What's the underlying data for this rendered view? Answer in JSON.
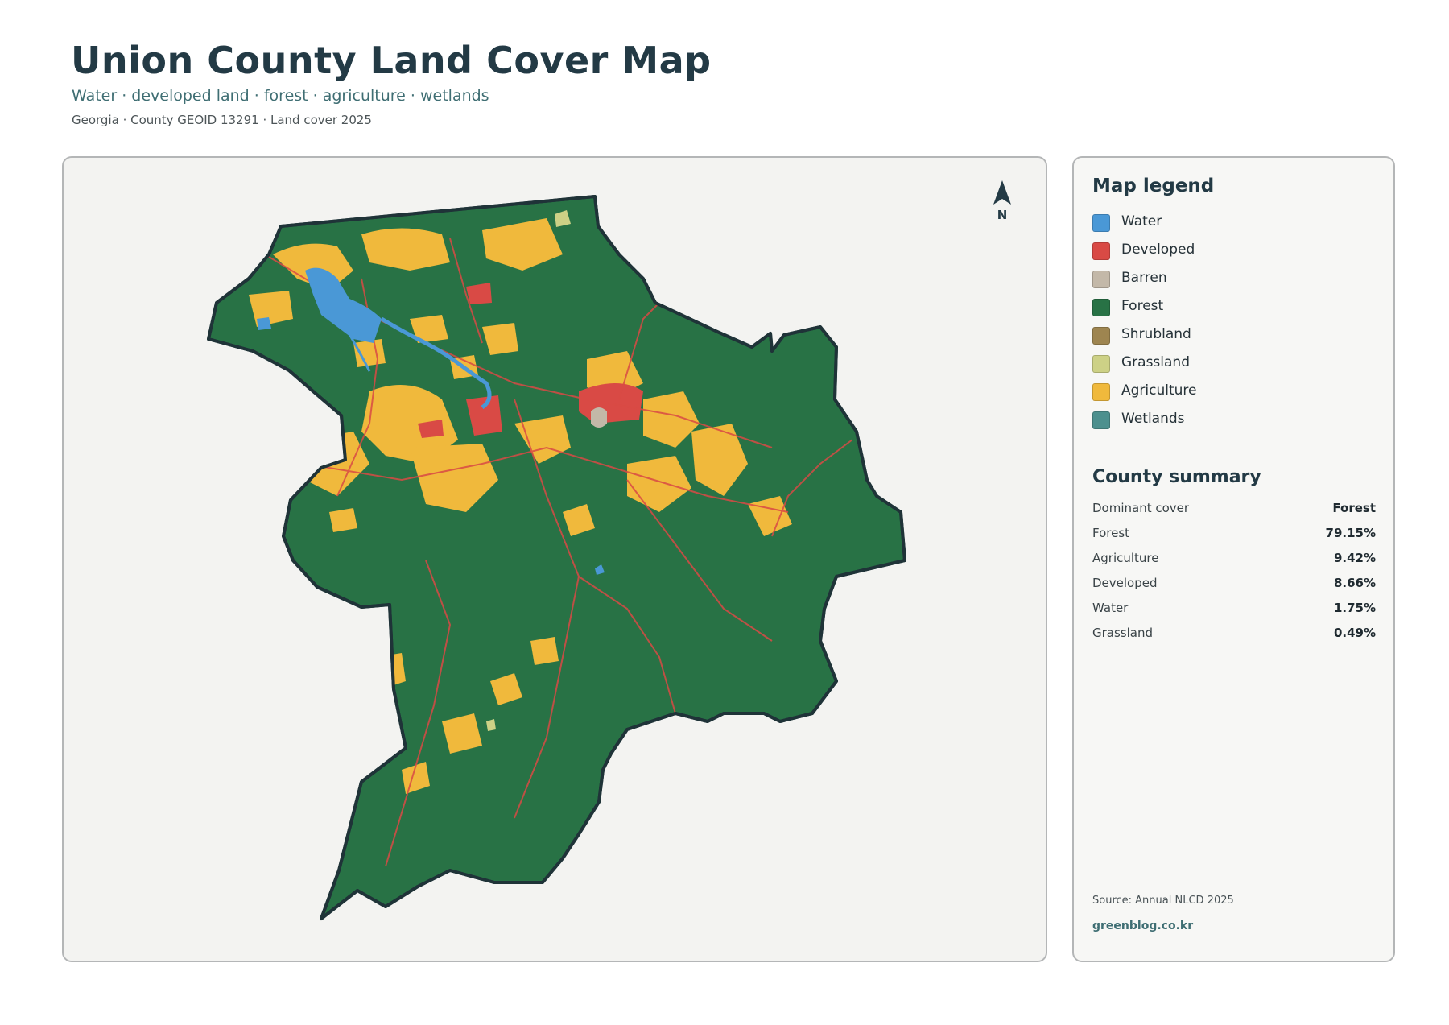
{
  "header": {
    "title": "Union County Land Cover Map",
    "subtitle": "Water · developed land · forest · agriculture · wetlands",
    "meta": "Georgia · County GEOID 13291 · Land cover 2025"
  },
  "map": {
    "north_label": "N",
    "colors": {
      "background": "#f3f3f1",
      "county_fill": "#287245",
      "county_outline": "#1f3338"
    }
  },
  "legend": {
    "title": "Map legend",
    "items": [
      {
        "label": "Water",
        "color": "#4a98d6"
      },
      {
        "label": "Developed",
        "color": "#d94a45"
      },
      {
        "label": "Barren",
        "color": "#c3b8a8"
      },
      {
        "label": "Forest",
        "color": "#287245"
      },
      {
        "label": "Shrubland",
        "color": "#9e8550"
      },
      {
        "label": "Grassland",
        "color": "#cdd186"
      },
      {
        "label": "Agriculture",
        "color": "#f0b93c"
      },
      {
        "label": "Wetlands",
        "color": "#4d908e"
      }
    ]
  },
  "summary": {
    "title": "County summary",
    "rows": [
      {
        "label": "Dominant cover",
        "value": "Forest"
      },
      {
        "label": "Forest",
        "value": "79.15%"
      },
      {
        "label": "Agriculture",
        "value": "9.42%"
      },
      {
        "label": "Developed",
        "value": "8.66%"
      },
      {
        "label": "Water",
        "value": "1.75%"
      },
      {
        "label": "Grassland",
        "value": "0.49%"
      }
    ]
  },
  "footer": {
    "source": "Source: Annual NLCD 2025",
    "credit": "greenblog.co.kr"
  }
}
